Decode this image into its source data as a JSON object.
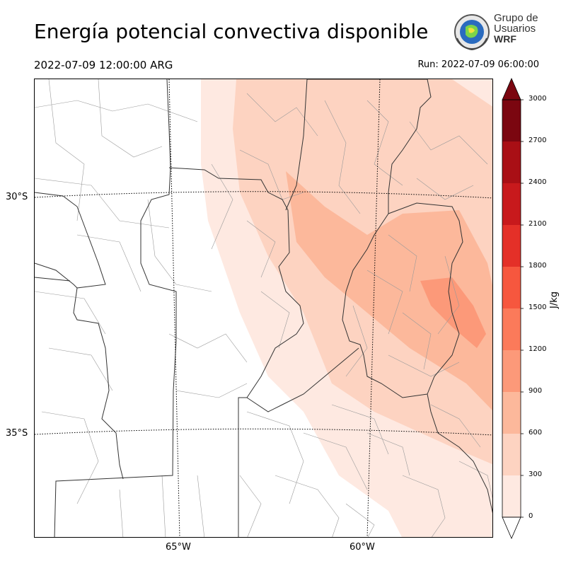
{
  "header": {
    "title": "Energía potencial convectiva disponible",
    "valid_time": "2022-07-09 12:00:00 ARG",
    "run_time": "Run: 2022-07-09 06:00:00"
  },
  "logo": {
    "line1": "Grupo de",
    "line2": "Usuarios",
    "line3": "WRF"
  },
  "map": {
    "lat_labels": [
      "30°S",
      "35°S"
    ],
    "lon_labels": [
      "65°W",
      "60°W"
    ]
  },
  "colorbar": {
    "unit": "J/kg",
    "levels": [
      0,
      300,
      600,
      900,
      1200,
      1500,
      1800,
      2100,
      2400,
      2700,
      3000
    ],
    "tick_labels": [
      "0",
      "300",
      "600",
      "900",
      "1200",
      "1500",
      "1800",
      "2100",
      "2400",
      "2700",
      "3000"
    ],
    "colors": [
      "#fee9e1",
      "#fdd3c1",
      "#fcb89b",
      "#fc9979",
      "#fb7a5a",
      "#f6573e",
      "#e43028",
      "#c8191c",
      "#a90f15",
      "#7b0610"
    ],
    "extend": "both"
  }
}
